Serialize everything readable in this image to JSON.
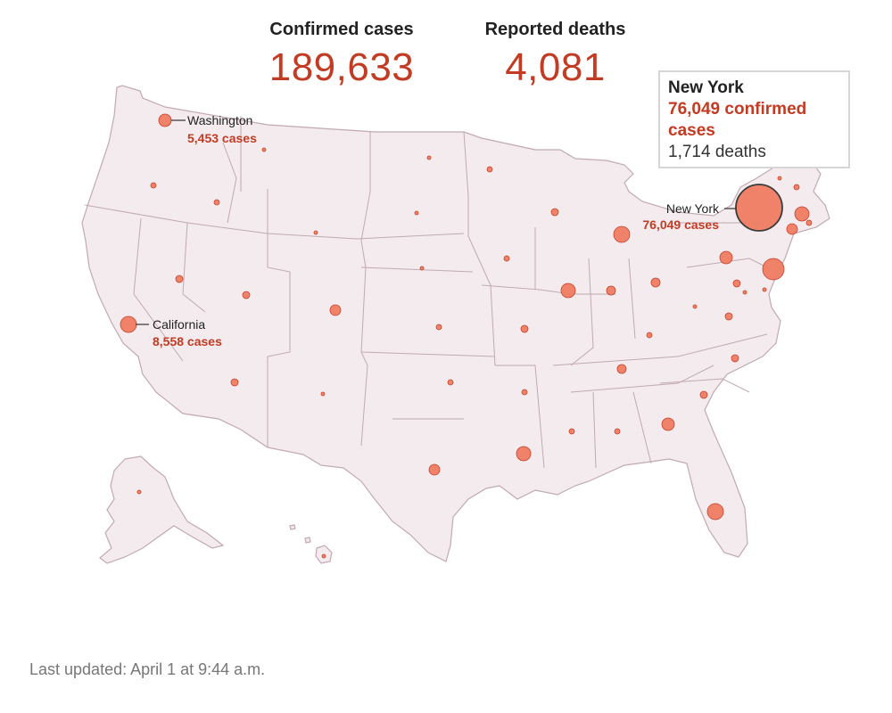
{
  "header": {
    "cases_label": "Confirmed cases",
    "cases_value": "189,633",
    "deaths_label": "Reported deaths",
    "deaths_value": "4,081"
  },
  "tooltip": {
    "state": "New York",
    "cases_text": "76,049 confirmed cases",
    "deaths_text": "1,714 deaths"
  },
  "callouts": [
    {
      "state": "Washington",
      "cases_text": "5,453 cases"
    },
    {
      "state": "California",
      "cases_text": "8,558 cases"
    },
    {
      "state": "New York",
      "cases_text": "76,049 cases"
    }
  ],
  "footer": {
    "last_updated": "Last updated: April 1 at 9:44 a.m."
  },
  "colors": {
    "accent": "#c23b22",
    "bubble_fill": "#ef7d62",
    "land_fill": "#f3ebee",
    "border": "#c2a9b3"
  },
  "icons": {
    "bubble": "case-bubble-icon"
  }
}
